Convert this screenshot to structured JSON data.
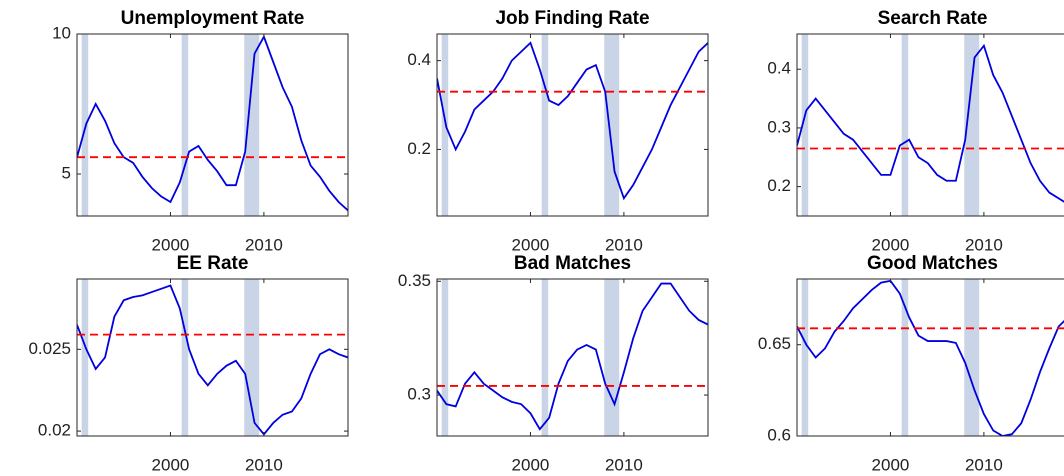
{
  "chart_data": [
    {
      "type": "line",
      "title": "Unemployment Rate",
      "color": "#0000e0",
      "reference_line": 5.6,
      "reference_color": "#ff0000",
      "shade_color": "#c9d5e6",
      "shaded_periods": [
        [
          1990.5,
          1991.2
        ],
        [
          2001.2,
          2001.9
        ],
        [
          2007.9,
          2009.5
        ]
      ],
      "x": [
        1990,
        1991,
        1992,
        1993,
        1994,
        1995,
        1996,
        1997,
        1998,
        1999,
        2000,
        2001,
        2002,
        2003,
        2004,
        2005,
        2006,
        2007,
        2008,
        2009,
        2010,
        2011,
        2012,
        2013,
        2014,
        2015,
        2016,
        2017,
        2018,
        2019
      ],
      "values": [
        5.6,
        6.8,
        7.5,
        6.9,
        6.1,
        5.6,
        5.4,
        4.9,
        4.5,
        4.2,
        4.0,
        4.7,
        5.8,
        6.0,
        5.5,
        5.1,
        4.6,
        4.6,
        5.8,
        9.3,
        9.9,
        9.0,
        8.1,
        7.4,
        6.2,
        5.3,
        4.9,
        4.4,
        4.0,
        3.7
      ],
      "xlim": [
        1990,
        2019
      ],
      "xticks": [
        2000,
        2010
      ],
      "ylim": [
        3.5,
        10
      ],
      "yticks": [
        5,
        10
      ]
    },
    {
      "type": "line",
      "title": "Job Finding Rate",
      "color": "#0000e0",
      "reference_line": 0.33,
      "reference_color": "#ff0000",
      "shade_color": "#c9d5e6",
      "shaded_periods": [
        [
          1990.5,
          1991.2
        ],
        [
          2001.2,
          2001.9
        ],
        [
          2007.9,
          2009.5
        ]
      ],
      "x": [
        1990,
        1991,
        1992,
        1993,
        1994,
        1995,
        1996,
        1997,
        1998,
        1999,
        2000,
        2001,
        2002,
        2003,
        2004,
        2005,
        2006,
        2007,
        2008,
        2009,
        2010,
        2011,
        2012,
        2013,
        2014,
        2015,
        2016,
        2017,
        2018,
        2019
      ],
      "values": [
        0.36,
        0.25,
        0.2,
        0.24,
        0.29,
        0.31,
        0.33,
        0.36,
        0.4,
        0.42,
        0.44,
        0.38,
        0.31,
        0.3,
        0.32,
        0.35,
        0.38,
        0.39,
        0.33,
        0.15,
        0.09,
        0.12,
        0.16,
        0.2,
        0.25,
        0.3,
        0.34,
        0.38,
        0.42,
        0.44
      ],
      "xlim": [
        1990,
        2019
      ],
      "xticks": [
        2000,
        2010
      ],
      "ylim": [
        0.05,
        0.46
      ],
      "yticks": [
        0.2,
        0.4
      ]
    },
    {
      "type": "line",
      "title": "Search Rate",
      "color": "#0000e0",
      "reference_line": 0.265,
      "reference_color": "#ff0000",
      "shade_color": "#c9d5e6",
      "shaded_periods": [
        [
          1990.5,
          1991.2
        ],
        [
          2001.2,
          2001.9
        ],
        [
          2007.9,
          2009.5
        ]
      ],
      "x": [
        1990,
        1991,
        1992,
        1993,
        1994,
        1995,
        1996,
        1997,
        1998,
        1999,
        2000,
        2001,
        2002,
        2003,
        2004,
        2005,
        2006,
        2007,
        2008,
        2009,
        2010,
        2011,
        2012,
        2013,
        2014,
        2015,
        2016,
        2017,
        2018,
        2019
      ],
      "values": [
        0.27,
        0.33,
        0.35,
        0.33,
        0.31,
        0.29,
        0.28,
        0.26,
        0.24,
        0.22,
        0.22,
        0.27,
        0.28,
        0.25,
        0.24,
        0.22,
        0.21,
        0.21,
        0.28,
        0.42,
        0.44,
        0.39,
        0.36,
        0.32,
        0.28,
        0.24,
        0.21,
        0.19,
        0.18,
        0.17
      ],
      "xlim": [
        1990,
        2019
      ],
      "xticks": [
        2000,
        2010
      ],
      "ylim": [
        0.15,
        0.46
      ],
      "yticks": [
        0.2,
        0.3,
        0.4
      ]
    },
    {
      "type": "line",
      "title": "EE Rate",
      "color": "#0000e0",
      "reference_line": 0.0259,
      "reference_color": "#ff0000",
      "shade_color": "#c9d5e6",
      "shaded_periods": [
        [
          1990.5,
          1991.2
        ],
        [
          2001.2,
          2001.9
        ],
        [
          2007.9,
          2009.5
        ]
      ],
      "x": [
        1990,
        1991,
        1992,
        1993,
        1994,
        1995,
        1996,
        1997,
        1998,
        1999,
        2000,
        2001,
        2002,
        2003,
        2004,
        2005,
        2006,
        2007,
        2008,
        2009,
        2010,
        2011,
        2012,
        2013,
        2014,
        2015,
        2016,
        2017,
        2018,
        2019
      ],
      "values": [
        0.0265,
        0.025,
        0.0238,
        0.0245,
        0.027,
        0.028,
        0.0282,
        0.0283,
        0.0285,
        0.0287,
        0.0289,
        0.0275,
        0.025,
        0.0235,
        0.0228,
        0.0235,
        0.024,
        0.0243,
        0.0235,
        0.0205,
        0.0198,
        0.0205,
        0.021,
        0.0212,
        0.022,
        0.0235,
        0.0247,
        0.025,
        0.0247,
        0.0245
      ],
      "xlim": [
        1990,
        2019
      ],
      "xticks": [
        2000,
        2010
      ],
      "ylim": [
        0.0197,
        0.0293
      ],
      "yticks": [
        0.02,
        0.025
      ]
    },
    {
      "type": "line",
      "title": "Bad Matches",
      "color": "#0000e0",
      "reference_line": 0.304,
      "reference_color": "#ff0000",
      "shade_color": "#c9d5e6",
      "shaded_periods": [
        [
          1990.5,
          1991.2
        ],
        [
          2001.2,
          2001.9
        ],
        [
          2007.9,
          2009.5
        ]
      ],
      "x": [
        1990,
        1991,
        1992,
        1993,
        1994,
        1995,
        1996,
        1997,
        1998,
        1999,
        2000,
        2001,
        2002,
        2003,
        2004,
        2005,
        2006,
        2007,
        2008,
        2009,
        2010,
        2011,
        2012,
        2013,
        2014,
        2015,
        2016,
        2017,
        2018,
        2019
      ],
      "values": [
        0.302,
        0.296,
        0.295,
        0.305,
        0.31,
        0.305,
        0.302,
        0.299,
        0.297,
        0.296,
        0.292,
        0.285,
        0.29,
        0.305,
        0.315,
        0.32,
        0.322,
        0.32,
        0.305,
        0.296,
        0.31,
        0.325,
        0.337,
        0.343,
        0.349,
        0.349,
        0.343,
        0.337,
        0.333,
        0.331
      ],
      "xlim": [
        1990,
        2019
      ],
      "xticks": [
        2000,
        2010
      ],
      "ylim": [
        0.282,
        0.351
      ],
      "yticks": [
        0.3,
        0.35
      ]
    },
    {
      "type": "line",
      "title": "Good Matches",
      "color": "#0000e0",
      "reference_line": 0.659,
      "reference_color": "#ff0000",
      "shade_color": "#c9d5e6",
      "shaded_periods": [
        [
          1990.5,
          1991.2
        ],
        [
          2001.2,
          2001.9
        ],
        [
          2007.9,
          2009.5
        ]
      ],
      "x": [
        1990,
        1991,
        1992,
        1993,
        1994,
        1995,
        1996,
        1997,
        1998,
        1999,
        2000,
        2001,
        2002,
        2003,
        2004,
        2005,
        2006,
        2007,
        2008,
        2009,
        2010,
        2011,
        2012,
        2013,
        2014,
        2015,
        2016,
        2017,
        2018,
        2019
      ],
      "values": [
        0.66,
        0.65,
        0.643,
        0.648,
        0.657,
        0.663,
        0.67,
        0.675,
        0.68,
        0.684,
        0.685,
        0.678,
        0.665,
        0.655,
        0.652,
        0.652,
        0.652,
        0.651,
        0.64,
        0.625,
        0.612,
        0.603,
        0.6,
        0.601,
        0.607,
        0.62,
        0.635,
        0.648,
        0.66,
        0.665
      ],
      "xlim": [
        1990,
        2019
      ],
      "xticks": [
        2000,
        2010
      ],
      "ylim": [
        0.6,
        0.686
      ],
      "yticks": [
        0.6,
        0.65
      ]
    }
  ]
}
